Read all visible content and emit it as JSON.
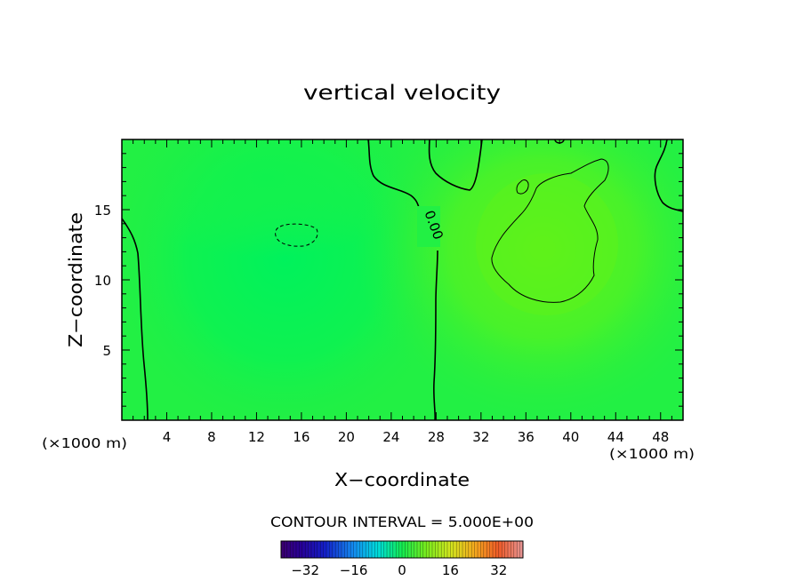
{
  "chart_data": {
    "type": "heatmap",
    "title": "vertical velocity",
    "xlabel": "X−coordinate",
    "ylabel": "Z−coordinate",
    "x_unit_left": "(×1000 m)",
    "x_unit_right": "(×1000 m)",
    "xlim": [
      0,
      50
    ],
    "ylim": [
      0,
      20
    ],
    "x_ticks": [
      4,
      8,
      12,
      16,
      20,
      24,
      28,
      32,
      36,
      40,
      44,
      48
    ],
    "y_ticks": [
      5,
      10,
      15
    ],
    "contour_interval_text": "CONTOUR INTERVAL = 5.000E+00",
    "contour_interval": 5,
    "contour_label": "0.00",
    "field_minimum_approx": -5,
    "field_maximum_approx": 5,
    "colorbar": {
      "range": [
        -40,
        40
      ],
      "tick_labels": [
        "−32",
        "−16",
        "0",
        "16",
        "32"
      ],
      "tick_values": [
        -32,
        -16,
        0,
        16,
        32
      ]
    },
    "colors": {
      "background_field": "#22f044",
      "negative_core": "#00f25a",
      "positive_core": "#5ef21c"
    }
  }
}
